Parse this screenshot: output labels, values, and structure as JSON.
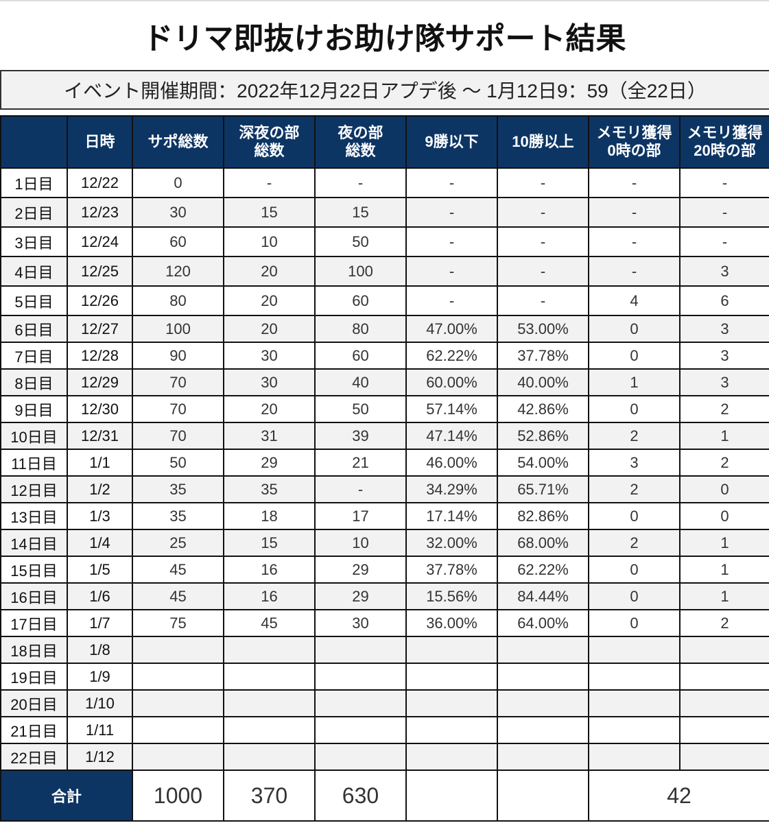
{
  "title": "ドリマ即抜けお助け隊サポート結果",
  "subtitle": "イベント開催期間：2022年12月22日アプデ後 〜 1月12日9：59（全22日）",
  "colors": {
    "header_bg": "#0d3564",
    "alt_row_bg": "#f2f2f2"
  },
  "table": {
    "headers": [
      "",
      "日時",
      "サポ総数",
      "深夜の部\n総数",
      "夜の部\n総数",
      "9勝以下",
      "10勝以上",
      "メモリ獲得\n0時の部",
      "メモリ獲得\n20時の部"
    ],
    "rows": [
      [
        "1日目",
        "12/22",
        "0",
        "-",
        "-",
        "-",
        "-",
        "-",
        "-"
      ],
      [
        "2日目",
        "12/23",
        "30",
        "15",
        "15",
        "-",
        "-",
        "-",
        "-"
      ],
      [
        "3日目",
        "12/24",
        "60",
        "10",
        "50",
        "-",
        "-",
        "-",
        "-"
      ],
      [
        "4日目",
        "12/25",
        "120",
        "20",
        "100",
        "-",
        "-",
        "-",
        "3"
      ],
      [
        "5日目",
        "12/26",
        "80",
        "20",
        "60",
        "-",
        "-",
        "4",
        "6"
      ],
      [
        "6日目",
        "12/27",
        "100",
        "20",
        "80",
        "47.00%",
        "53.00%",
        "0",
        "3"
      ],
      [
        "7日目",
        "12/28",
        "90",
        "30",
        "60",
        "62.22%",
        "37.78%",
        "0",
        "3"
      ],
      [
        "8日目",
        "12/29",
        "70",
        "30",
        "40",
        "60.00%",
        "40.00%",
        "1",
        "3"
      ],
      [
        "9日目",
        "12/30",
        "70",
        "20",
        "50",
        "57.14%",
        "42.86%",
        "0",
        "2"
      ],
      [
        "10日目",
        "12/31",
        "70",
        "31",
        "39",
        "47.14%",
        "52.86%",
        "2",
        "1"
      ],
      [
        "11日目",
        "1/1",
        "50",
        "29",
        "21",
        "46.00%",
        "54.00%",
        "3",
        "2"
      ],
      [
        "12日目",
        "1/2",
        "35",
        "35",
        "-",
        "34.29%",
        "65.71%",
        "2",
        "0"
      ],
      [
        "13日目",
        "1/3",
        "35",
        "18",
        "17",
        "17.14%",
        "82.86%",
        "0",
        "0"
      ],
      [
        "14日目",
        "1/4",
        "25",
        "15",
        "10",
        "32.00%",
        "68.00%",
        "2",
        "1"
      ],
      [
        "15日目",
        "1/5",
        "45",
        "16",
        "29",
        "37.78%",
        "62.22%",
        "0",
        "1"
      ],
      [
        "16日目",
        "1/6",
        "45",
        "16",
        "29",
        "15.56%",
        "84.44%",
        "0",
        "1"
      ],
      [
        "17日目",
        "1/7",
        "75",
        "45",
        "30",
        "36.00%",
        "64.00%",
        "0",
        "2"
      ],
      [
        "18日目",
        "1/8",
        "",
        "",
        "",
        "",
        "",
        "",
        ""
      ],
      [
        "19日目",
        "1/9",
        "",
        "",
        "",
        "",
        "",
        "",
        ""
      ],
      [
        "20日目",
        "1/10",
        "",
        "",
        "",
        "",
        "",
        "",
        ""
      ],
      [
        "21日目",
        "1/11",
        "",
        "",
        "",
        "",
        "",
        "",
        ""
      ],
      [
        "22日目",
        "1/12",
        "",
        "",
        "",
        "",
        "",
        "",
        ""
      ]
    ],
    "total": {
      "label": "合計",
      "sapo_total": "1000",
      "shinya_total": "370",
      "yoru_total": "630",
      "win9_total": "",
      "win10_total": "",
      "memory_total": "42"
    }
  }
}
